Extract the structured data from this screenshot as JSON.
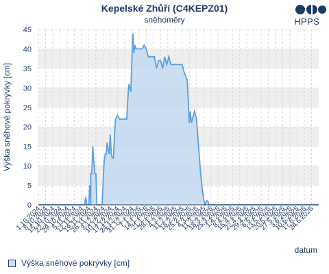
{
  "header": {
    "title": "Kepelské Zhůří (C4KEPZ01)",
    "subtitle": "sněhoměry"
  },
  "logo": {
    "text": "HPPS",
    "icon": "hpps-logo-icon",
    "color": "#1f3a66"
  },
  "chart_data": {
    "type": "area",
    "title": "Kepelské Zhůří (C4KEPZ01)",
    "subtitle": "sněhoměry",
    "xlabel": "datum",
    "ylabel": "Výška sněhové pokrývky [cm]",
    "ylim": [
      0,
      45
    ],
    "yticks": [
      0,
      5,
      10,
      15,
      20,
      25,
      30,
      35,
      40,
      45
    ],
    "xlim": [
      "2024-10-01",
      "2025-07-01"
    ],
    "xtick_labels": [
      "1.10.2024",
      "8.10.2024",
      "15.10.2024",
      "22.10.2024",
      "29.10.2024",
      "5.11.2024",
      "12.11.2024",
      "19.11.2024",
      "26.11.2024",
      "3.12.2024",
      "10.12.2024",
      "17.12.2024",
      "24.12.2024",
      "31.12.2024",
      "7.1.2025",
      "14.1.2025",
      "21.1.2025",
      "28.1.2025",
      "4.2.2025",
      "11.2.2025",
      "18.2.2025",
      "25.2.2025",
      "4.3.2025",
      "11.3.2025",
      "18.3.2025",
      "25.3.2025",
      "1.4.2025",
      "8.4.2025",
      "15.4.2025",
      "22.4.2025",
      "29.4.2025",
      "6.5.2025",
      "13.5.2025",
      "20.5.2025",
      "27.5.2025",
      "3.6.2025",
      "10.6.2025",
      "17.6.2025",
      "24.6.2025"
    ],
    "grid": true,
    "legend": "bottom-left",
    "colors": {
      "line": "#5b9ee0",
      "fill": "#c3d8ef",
      "band": "#eeeeee",
      "text": "#1f3a66"
    },
    "series": [
      {
        "name": "Výška sněhové pokrývky [cm]",
        "points": [
          [
            "2024-10-01",
            0
          ],
          [
            "2024-11-15",
            0
          ],
          [
            "2024-11-16",
            2
          ],
          [
            "2024-11-17",
            0
          ],
          [
            "2024-11-19",
            0
          ],
          [
            "2024-11-20",
            5
          ],
          [
            "2024-11-21",
            0
          ],
          [
            "2024-11-21",
            8
          ],
          [
            "2024-11-22",
            8
          ],
          [
            "2024-11-23",
            15
          ],
          [
            "2024-11-24",
            11
          ],
          [
            "2024-11-25",
            8
          ],
          [
            "2024-11-26",
            8
          ],
          [
            "2024-11-27",
            0
          ],
          [
            "2024-12-02",
            0
          ],
          [
            "2024-12-04",
            11
          ],
          [
            "2024-12-05",
            13
          ],
          [
            "2024-12-06",
            13
          ],
          [
            "2024-12-07",
            16
          ],
          [
            "2024-12-08",
            14
          ],
          [
            "2024-12-09",
            13
          ],
          [
            "2024-12-10",
            18
          ],
          [
            "2024-12-11",
            13
          ],
          [
            "2024-12-12",
            12
          ],
          [
            "2024-12-13",
            12
          ],
          [
            "2024-12-15",
            22
          ],
          [
            "2024-12-17",
            23
          ],
          [
            "2024-12-19",
            22
          ],
          [
            "2024-12-26",
            22
          ],
          [
            "2024-12-28",
            31
          ],
          [
            "2024-12-30",
            29
          ],
          [
            "2025-01-01",
            44
          ],
          [
            "2025-01-02",
            39
          ],
          [
            "2025-01-03",
            41
          ],
          [
            "2025-01-04",
            40
          ],
          [
            "2025-01-10",
            40
          ],
          [
            "2025-01-12",
            41
          ],
          [
            "2025-01-14",
            40
          ],
          [
            "2025-01-16",
            38
          ],
          [
            "2025-01-22",
            38
          ],
          [
            "2025-01-24",
            35
          ],
          [
            "2025-01-26",
            37
          ],
          [
            "2025-01-28",
            37
          ],
          [
            "2025-01-30",
            35
          ],
          [
            "2025-02-01",
            38
          ],
          [
            "2025-02-03",
            36
          ],
          [
            "2025-02-05",
            38
          ],
          [
            "2025-02-07",
            36
          ],
          [
            "2025-02-18",
            36
          ],
          [
            "2025-02-20",
            34
          ],
          [
            "2025-02-23",
            32
          ],
          [
            "2025-02-25",
            21
          ],
          [
            "2025-02-26",
            24
          ],
          [
            "2025-02-27",
            21
          ],
          [
            "2025-02-28",
            22
          ],
          [
            "2025-03-02",
            24
          ],
          [
            "2025-03-04",
            22
          ],
          [
            "2025-03-06",
            15
          ],
          [
            "2025-03-08",
            8
          ],
          [
            "2025-03-10",
            3
          ],
          [
            "2025-03-12",
            0
          ],
          [
            "2025-03-14",
            1
          ],
          [
            "2025-03-15",
            1
          ],
          [
            "2025-03-16",
            0
          ],
          [
            "2025-07-01",
            0
          ]
        ]
      }
    ]
  }
}
